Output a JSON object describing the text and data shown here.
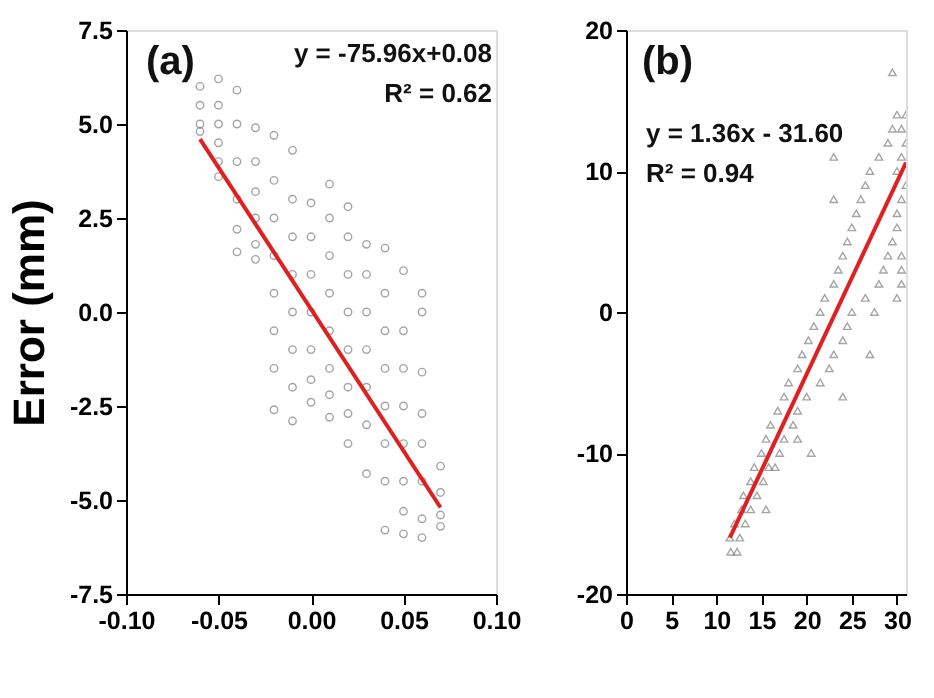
{
  "chart_data": [
    {
      "type": "scatter",
      "ylabel": "Error (mm)",
      "annotations": [
        "(a)",
        "y = -75.96x+0.08",
        "R² = 0.62"
      ],
      "xlim": [
        -0.1,
        0.1
      ],
      "xticks": [
        {
          "value": -0.1,
          "label": "-0.10"
        },
        -0.05,
        {
          "value": 0,
          "label": "0.00"
        },
        0.05,
        {
          "value": 0.1,
          "label": "0.10"
        }
      ],
      "ylim": [
        -7.5,
        7.5
      ],
      "yticks": [
        -7.5,
        {
          "value": -5,
          "label": "-5.0"
        },
        -2.5,
        {
          "value": 0,
          "label": "0.0"
        },
        2.5,
        {
          "value": 5,
          "label": "5.0"
        },
        7.5
      ],
      "grid": false,
      "series": [
        {
          "marker": "circle",
          "color": "#808080",
          "x": [
            -0.06,
            -0.06,
            -0.06,
            -0.06,
            -0.05,
            -0.05,
            -0.05,
            -0.05,
            -0.05,
            -0.05,
            -0.04,
            -0.04,
            -0.04,
            -0.04,
            -0.04,
            -0.04,
            -0.03,
            -0.03,
            -0.03,
            -0.03,
            -0.03,
            -0.03,
            -0.02,
            -0.02,
            -0.02,
            -0.02,
            -0.02,
            -0.02,
            -0.02,
            -0.02,
            -0.01,
            -0.01,
            -0.01,
            -0.01,
            -0.01,
            -0.01,
            -0.01,
            -0.01,
            0,
            0,
            0,
            0,
            0,
            0,
            0,
            0.01,
            0.01,
            0.01,
            0.01,
            0.01,
            0.01,
            0.01,
            0.01,
            0.02,
            0.02,
            0.02,
            0.02,
            0.02,
            0.02,
            0.02,
            0.02,
            0.03,
            0.03,
            0.03,
            0.03,
            0.03,
            0.03,
            0.03,
            0.04,
            0.04,
            0.04,
            0.04,
            0.04,
            0.04,
            0.04,
            0.04,
            0.05,
            0.05,
            0.05,
            0.05,
            0.05,
            0.05,
            0.05,
            0.05,
            0.06,
            0.06,
            0.06,
            0.06,
            0.06,
            0.06,
            0.06,
            0.06,
            0.07,
            0.07,
            0.07,
            0.07
          ],
          "values": [
            6.0,
            5.5,
            5.0,
            4.8,
            6.2,
            5.5,
            5.0,
            4.5,
            4.0,
            3.6,
            5.9,
            5.0,
            4.0,
            3.0,
            2.2,
            1.6,
            4.9,
            4.0,
            3.2,
            2.5,
            1.8,
            1.4,
            4.7,
            3.5,
            2.5,
            1.5,
            0.5,
            -0.5,
            -1.5,
            -2.6,
            4.3,
            3.0,
            2.0,
            1.0,
            0.0,
            -1.0,
            -2.0,
            -2.9,
            2.9,
            2.0,
            1.0,
            0.0,
            -1.0,
            -1.8,
            -2.4,
            3.4,
            2.5,
            1.5,
            0.5,
            -0.5,
            -1.5,
            -2.2,
            -2.8,
            2.8,
            2.0,
            1.0,
            0.0,
            -1.0,
            -2.0,
            -2.7,
            -3.5,
            1.8,
            1.0,
            0.0,
            -1.0,
            -2.0,
            -3.0,
            -4.3,
            1.7,
            0.5,
            -0.5,
            -1.5,
            -2.5,
            -3.5,
            -4.5,
            -5.8,
            1.1,
            -0.5,
            -1.5,
            -2.5,
            -3.5,
            -4.5,
            -5.3,
            -5.9,
            0.5,
            0.0,
            -1.6,
            -2.7,
            -3.5,
            -4.5,
            -5.5,
            -6.0,
            -4.1,
            -4.8,
            -5.4,
            -5.7
          ]
        },
        {
          "type": "line",
          "color": "#e02020",
          "x": [
            -0.06,
            0.07
          ],
          "values": [
            4.6,
            -5.2
          ]
        }
      ]
    },
    {
      "type": "scatter",
      "annotations": [
        "(b)",
        "y = 1.36x - 31.60",
        "R² = 0.94"
      ],
      "xlim": [
        0,
        31
      ],
      "xticks": [
        0,
        5,
        10,
        15,
        20,
        25,
        30
      ],
      "ylim": [
        -20,
        20
      ],
      "yticks": [
        -20,
        -10,
        0,
        10,
        20
      ],
      "grid": false,
      "series": [
        {
          "marker": "triangle",
          "color": "#808080",
          "x": [
            11.6,
            12.3,
            11.5,
            12.6,
            12,
            13.2,
            12.8,
            13.8,
            15.5,
            13,
            14.5,
            13.8,
            15.2,
            14.2,
            15.8,
            16.5,
            15,
            17,
            20.5,
            15.5,
            17.5,
            19,
            16,
            18.5,
            16.8,
            19,
            17.5,
            20,
            24,
            18,
            21.5,
            19,
            22.5,
            19.5,
            23,
            27,
            20.2,
            24,
            20.8,
            24.5,
            21.5,
            25,
            27.5,
            22,
            26.5,
            30,
            23,
            28,
            30.5,
            23.5,
            28.5,
            30.5,
            24,
            29,
            30.5,
            24.5,
            29.5,
            25,
            30,
            25.5,
            30,
            26,
            30.5,
            23,
            26.5,
            31,
            27,
            30,
            28,
            30.5,
            23,
            29,
            31,
            29.5,
            30.5,
            30,
            31,
            29.5
          ],
          "values": [
            -17,
            -17,
            -16,
            -16,
            -15,
            -15,
            -14,
            -14,
            -14,
            -13,
            -13,
            -12,
            -12,
            -11,
            -11,
            -11,
            -10,
            -10,
            -10,
            -9,
            -9,
            -9,
            -8,
            -8,
            -7,
            -7,
            -6,
            -6,
            -6,
            -5,
            -5,
            -4,
            -4,
            -3,
            -3,
            -3,
            -2,
            -2,
            -1,
            -1,
            0,
            0,
            0,
            1,
            1,
            1,
            2,
            2,
            2,
            3,
            3,
            3,
            4,
            4,
            4,
            5,
            5,
            6,
            6,
            7,
            7,
            8,
            8,
            8,
            9,
            9,
            10,
            10,
            11,
            11,
            11,
            12,
            12,
            13,
            13,
            14,
            14,
            17
          ]
        },
        {
          "type": "line",
          "color": "#e02020",
          "x": [
            11.5,
            31
          ],
          "values": [
            -16.0,
            10.6
          ]
        }
      ]
    }
  ]
}
